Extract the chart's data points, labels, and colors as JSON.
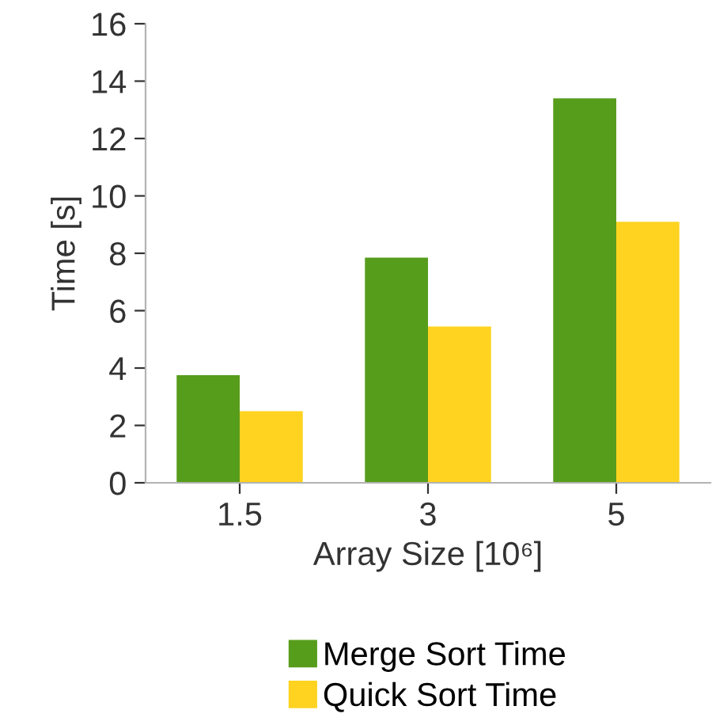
{
  "chart_data": {
    "type": "bar",
    "xlabel": "Array Size [10⁶]",
    "ylabel": "Time [s]",
    "categories": [
      "1.5",
      "3",
      "5"
    ],
    "series": [
      {
        "name": "Merge Sort Time",
        "color": "#579d1c",
        "values": [
          3.75,
          7.85,
          13.4
        ]
      },
      {
        "name": "Quick Sort Time",
        "color": "#ffd320",
        "values": [
          2.5,
          5.45,
          9.1
        ]
      }
    ],
    "ylim": [
      0,
      16
    ],
    "yticks": [
      0,
      2,
      4,
      6,
      8,
      10,
      12,
      14,
      16
    ],
    "grid": false,
    "legend": "bottom"
  }
}
